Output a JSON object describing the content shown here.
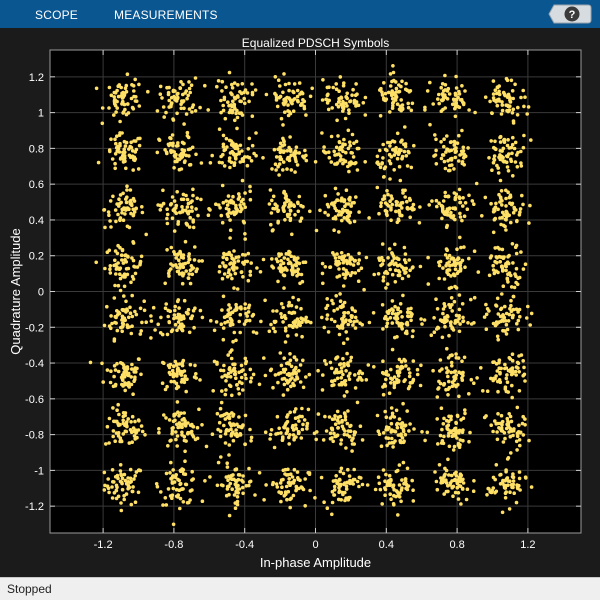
{
  "toolbar": {
    "tabs": [
      {
        "label": "SCOPE"
      },
      {
        "label": "MEASUREMENTS"
      }
    ],
    "help_icon": "help-question-icon"
  },
  "status": {
    "text": "Stopped"
  },
  "colors": {
    "toolbar_bg": "#0a5691",
    "plot_bg": "#000000",
    "figure_bg": "#1b1b1b",
    "marker": "#ffe066",
    "text": "#ffffff",
    "grid": "#3a3a3a"
  },
  "chart_data": {
    "type": "scatter",
    "title": "Equalized PDSCH Symbols",
    "xlabel": "In-phase Amplitude",
    "ylabel": "Quadrature Amplitude",
    "xlim": [
      -1.5,
      1.5
    ],
    "ylim": [
      -1.35,
      1.35
    ],
    "xticks": [
      -1.2,
      -0.8,
      -0.4,
      0,
      0.4,
      0.8,
      1.2
    ],
    "xtick_labels": [
      "-1.2",
      "-0.8",
      "-0.4",
      "0",
      "0.4",
      "0.8",
      "1.2"
    ],
    "yticks": [
      -1.2,
      -1,
      -0.8,
      -0.6,
      -0.4,
      -0.2,
      0,
      0.2,
      0.4,
      0.6,
      0.8,
      1,
      1.2
    ],
    "ytick_labels": [
      "-1.2",
      "-1",
      "-0.8",
      "-0.6",
      "-0.4",
      "-0.2",
      "0",
      "0.2",
      "0.4",
      "0.6",
      "0.8",
      "1",
      "1.2"
    ],
    "grid": true,
    "modulation": "64QAM",
    "constellation_levels": [
      -1.08,
      -0.77,
      -0.46,
      -0.15,
      0.15,
      0.46,
      0.77,
      1.08
    ],
    "points_per_cluster": 60,
    "spread_std": 0.055
  }
}
